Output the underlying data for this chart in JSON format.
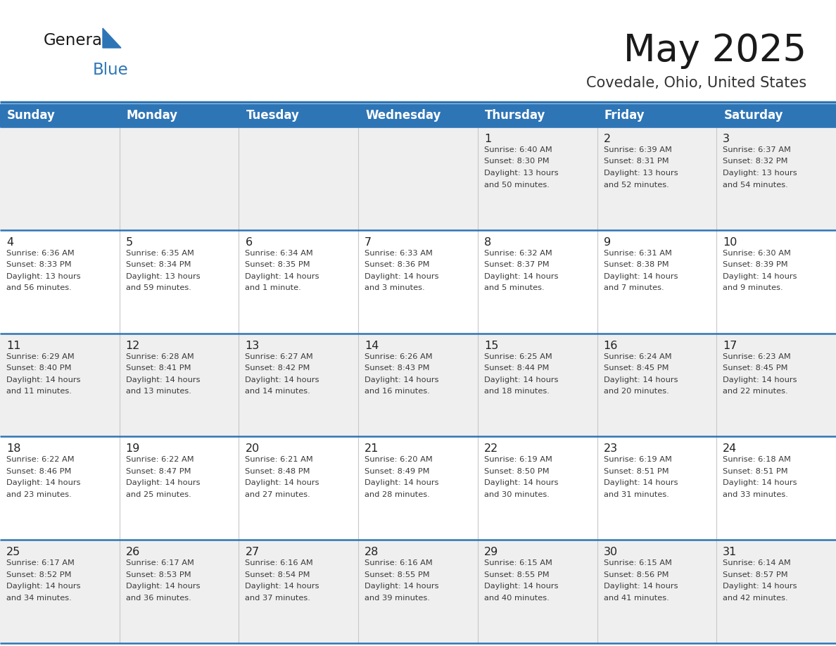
{
  "title": "May 2025",
  "subtitle": "Covedale, Ohio, United States",
  "days_of_week": [
    "Sunday",
    "Monday",
    "Tuesday",
    "Wednesday",
    "Thursday",
    "Friday",
    "Saturday"
  ],
  "header_bg": "#2E75B6",
  "header_text_color": "#FFFFFF",
  "row_bg_odd": "#EFEFEF",
  "row_bg_even": "#FFFFFF",
  "cell_text_color": "#333333",
  "day_num_color": "#222222",
  "grid_line_color": "#2E75B6",
  "title_color": "#1a1a1a",
  "subtitle_color": "#333333",
  "logo_general_color": "#1a1a1a",
  "logo_blue_color": "#2E75B6",
  "calendar_data": [
    [
      {
        "day": null,
        "info": ""
      },
      {
        "day": null,
        "info": ""
      },
      {
        "day": null,
        "info": ""
      },
      {
        "day": null,
        "info": ""
      },
      {
        "day": 1,
        "info": "Sunrise: 6:40 AM\nSunset: 8:30 PM\nDaylight: 13 hours\nand 50 minutes."
      },
      {
        "day": 2,
        "info": "Sunrise: 6:39 AM\nSunset: 8:31 PM\nDaylight: 13 hours\nand 52 minutes."
      },
      {
        "day": 3,
        "info": "Sunrise: 6:37 AM\nSunset: 8:32 PM\nDaylight: 13 hours\nand 54 minutes."
      }
    ],
    [
      {
        "day": 4,
        "info": "Sunrise: 6:36 AM\nSunset: 8:33 PM\nDaylight: 13 hours\nand 56 minutes."
      },
      {
        "day": 5,
        "info": "Sunrise: 6:35 AM\nSunset: 8:34 PM\nDaylight: 13 hours\nand 59 minutes."
      },
      {
        "day": 6,
        "info": "Sunrise: 6:34 AM\nSunset: 8:35 PM\nDaylight: 14 hours\nand 1 minute."
      },
      {
        "day": 7,
        "info": "Sunrise: 6:33 AM\nSunset: 8:36 PM\nDaylight: 14 hours\nand 3 minutes."
      },
      {
        "day": 8,
        "info": "Sunrise: 6:32 AM\nSunset: 8:37 PM\nDaylight: 14 hours\nand 5 minutes."
      },
      {
        "day": 9,
        "info": "Sunrise: 6:31 AM\nSunset: 8:38 PM\nDaylight: 14 hours\nand 7 minutes."
      },
      {
        "day": 10,
        "info": "Sunrise: 6:30 AM\nSunset: 8:39 PM\nDaylight: 14 hours\nand 9 minutes."
      }
    ],
    [
      {
        "day": 11,
        "info": "Sunrise: 6:29 AM\nSunset: 8:40 PM\nDaylight: 14 hours\nand 11 minutes."
      },
      {
        "day": 12,
        "info": "Sunrise: 6:28 AM\nSunset: 8:41 PM\nDaylight: 14 hours\nand 13 minutes."
      },
      {
        "day": 13,
        "info": "Sunrise: 6:27 AM\nSunset: 8:42 PM\nDaylight: 14 hours\nand 14 minutes."
      },
      {
        "day": 14,
        "info": "Sunrise: 6:26 AM\nSunset: 8:43 PM\nDaylight: 14 hours\nand 16 minutes."
      },
      {
        "day": 15,
        "info": "Sunrise: 6:25 AM\nSunset: 8:44 PM\nDaylight: 14 hours\nand 18 minutes."
      },
      {
        "day": 16,
        "info": "Sunrise: 6:24 AM\nSunset: 8:45 PM\nDaylight: 14 hours\nand 20 minutes."
      },
      {
        "day": 17,
        "info": "Sunrise: 6:23 AM\nSunset: 8:45 PM\nDaylight: 14 hours\nand 22 minutes."
      }
    ],
    [
      {
        "day": 18,
        "info": "Sunrise: 6:22 AM\nSunset: 8:46 PM\nDaylight: 14 hours\nand 23 minutes."
      },
      {
        "day": 19,
        "info": "Sunrise: 6:22 AM\nSunset: 8:47 PM\nDaylight: 14 hours\nand 25 minutes."
      },
      {
        "day": 20,
        "info": "Sunrise: 6:21 AM\nSunset: 8:48 PM\nDaylight: 14 hours\nand 27 minutes."
      },
      {
        "day": 21,
        "info": "Sunrise: 6:20 AM\nSunset: 8:49 PM\nDaylight: 14 hours\nand 28 minutes."
      },
      {
        "day": 22,
        "info": "Sunrise: 6:19 AM\nSunset: 8:50 PM\nDaylight: 14 hours\nand 30 minutes."
      },
      {
        "day": 23,
        "info": "Sunrise: 6:19 AM\nSunset: 8:51 PM\nDaylight: 14 hours\nand 31 minutes."
      },
      {
        "day": 24,
        "info": "Sunrise: 6:18 AM\nSunset: 8:51 PM\nDaylight: 14 hours\nand 33 minutes."
      }
    ],
    [
      {
        "day": 25,
        "info": "Sunrise: 6:17 AM\nSunset: 8:52 PM\nDaylight: 14 hours\nand 34 minutes."
      },
      {
        "day": 26,
        "info": "Sunrise: 6:17 AM\nSunset: 8:53 PM\nDaylight: 14 hours\nand 36 minutes."
      },
      {
        "day": 27,
        "info": "Sunrise: 6:16 AM\nSunset: 8:54 PM\nDaylight: 14 hours\nand 37 minutes."
      },
      {
        "day": 28,
        "info": "Sunrise: 6:16 AM\nSunset: 8:55 PM\nDaylight: 14 hours\nand 39 minutes."
      },
      {
        "day": 29,
        "info": "Sunrise: 6:15 AM\nSunset: 8:55 PM\nDaylight: 14 hours\nand 40 minutes."
      },
      {
        "day": 30,
        "info": "Sunrise: 6:15 AM\nSunset: 8:56 PM\nDaylight: 14 hours\nand 41 minutes."
      },
      {
        "day": 31,
        "info": "Sunrise: 6:14 AM\nSunset: 8:57 PM\nDaylight: 14 hours\nand 42 minutes."
      }
    ]
  ]
}
